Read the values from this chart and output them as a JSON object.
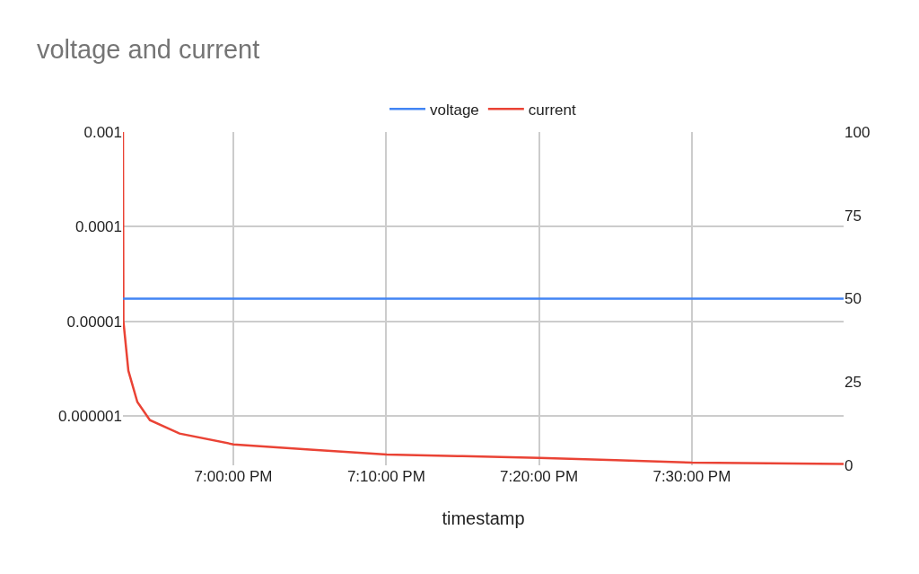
{
  "chart_data": {
    "type": "line",
    "title": "voltage and current",
    "xlabel": "timestamp",
    "legend": "top",
    "grid": true,
    "log": "y",
    "marker": "none",
    "line_style": "solid",
    "xlim": [
      18.8796,
      19.6655
    ],
    "xticks": [
      {
        "value": 19,
        "label": "7:00:00 PM"
      },
      {
        "value": 19.1667,
        "label": "7:10:00 PM"
      },
      {
        "value": 19.3333,
        "label": "7:20:00 PM"
      },
      {
        "value": 19.5,
        "label": "7:30:00 PM"
      }
    ],
    "ylim": [
      3e-07,
      0.001
    ],
    "yticks": [
      {
        "value": 1e-06,
        "label": "0.000001"
      },
      {
        "value": 1e-05,
        "label": "0.00001"
      },
      {
        "value": 0.0001,
        "label": "0.0001"
      },
      {
        "value": 0.001,
        "label": "0.001"
      }
    ],
    "y2lim": [
      0,
      100
    ],
    "y2ticks": [
      0,
      25,
      50,
      75,
      100
    ],
    "series": [
      {
        "name": "voltage",
        "color": "#4285f4",
        "axis": "y2",
        "x": [
          18.8796,
          19.6655
        ],
        "values": [
          50,
          50
        ]
      },
      {
        "name": "current",
        "color": "#ea4335",
        "x": [
          18.8796,
          18.8801,
          18.8855,
          18.8953,
          18.909,
          18.9413,
          19,
          19.0835,
          19.1674,
          19.25,
          19.3337,
          19.4167,
          19.5001,
          19.5833,
          19.6655
        ],
        "values": [
          0.001,
          1e-05,
          3e-06,
          1.4e-06,
          9e-07,
          6.5e-07,
          5e-07,
          4.4e-07,
          3.9e-07,
          3.75e-07,
          3.6e-07,
          3.4e-07,
          3.2e-07,
          3.15e-07,
          3.1e-07
        ]
      }
    ]
  }
}
